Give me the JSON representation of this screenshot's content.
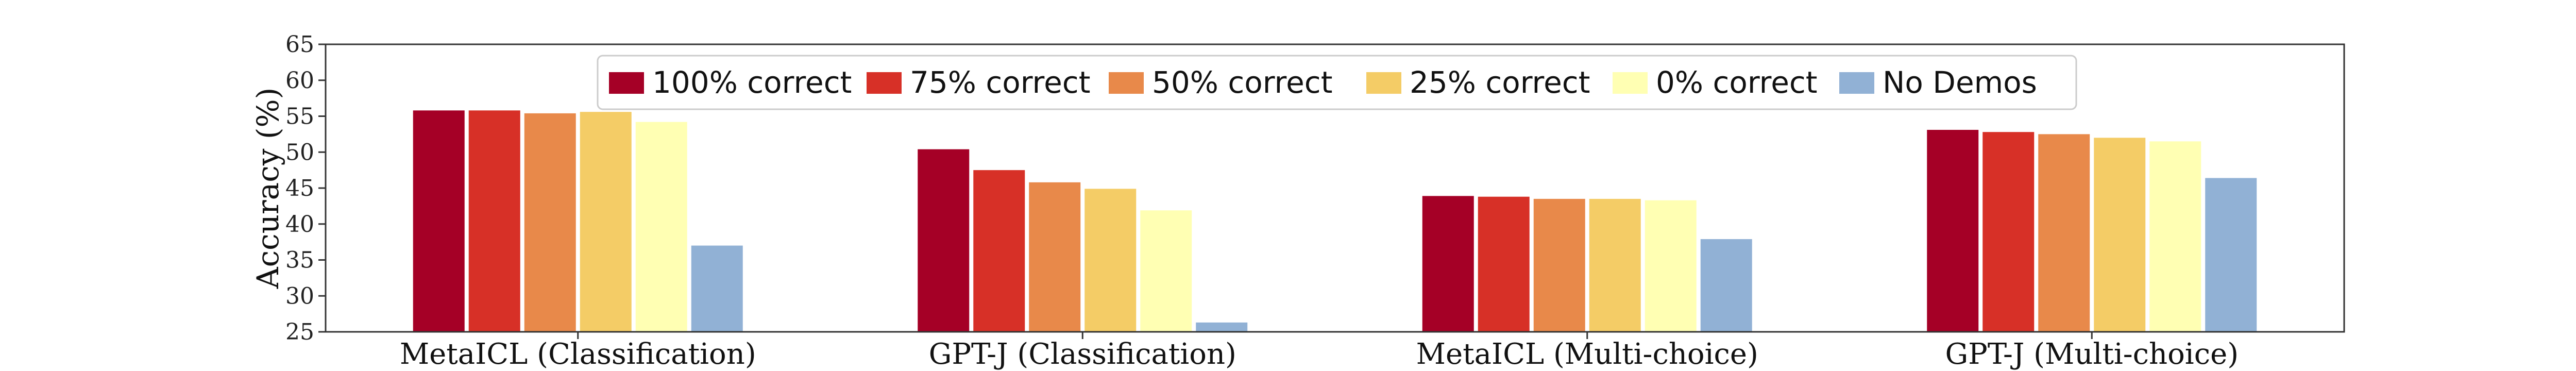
{
  "chart_data": {
    "type": "bar",
    "categories": [
      "MetaICL (Classification)",
      "GPT-J (Classification)",
      "MetaICL (Multi-choice)",
      "GPT-J (Multi-choice)"
    ],
    "ylabel": "Accuracy (%)",
    "xlabel": "",
    "ylim": [
      25,
      65
    ],
    "yticks": [
      25,
      30,
      35,
      40,
      45,
      50,
      55,
      60,
      65
    ],
    "grid": false,
    "legend_position": "top",
    "series": [
      {
        "name": "100% correct",
        "color": "#a50026",
        "values": [
          55.8,
          50.4,
          43.9,
          53.1
        ]
      },
      {
        "name": "75% correct",
        "color": "#d73027",
        "values": [
          55.8,
          47.5,
          43.8,
          52.8
        ]
      },
      {
        "name": "50% correct",
        "color": "#e8894a",
        "values": [
          55.4,
          45.8,
          43.5,
          52.5
        ]
      },
      {
        "name": "25% correct",
        "color": "#f4cc66",
        "values": [
          55.6,
          44.9,
          43.5,
          52.0
        ]
      },
      {
        "name": "0% correct",
        "color": "#ffffb3",
        "values": [
          54.2,
          41.9,
          43.3,
          51.5
        ]
      },
      {
        "name": "No Demos",
        "color": "#91b1d5",
        "values": [
          37.0,
          26.3,
          37.9,
          46.4
        ]
      }
    ]
  }
}
